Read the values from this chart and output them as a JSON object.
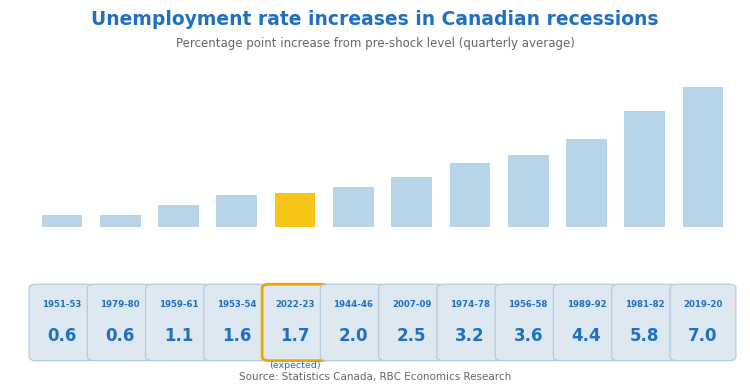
{
  "categories": [
    "1951-53",
    "1979-80",
    "1959-61",
    "1953-54",
    "2022-23",
    "1944-46",
    "2007-09",
    "1974-78",
    "1956-58",
    "1989-92",
    "1981-82",
    "2019-20"
  ],
  "values": [
    0.6,
    0.6,
    1.1,
    1.6,
    1.7,
    2.0,
    2.5,
    3.2,
    3.6,
    4.4,
    5.8,
    7.0
  ],
  "bar_colors": [
    "#b8d4e8",
    "#b8d4e8",
    "#b8d4e8",
    "#b8d4e8",
    "#f5c518",
    "#b8d4e8",
    "#b8d4e8",
    "#b8d4e8",
    "#b8d4e8",
    "#b8d4e8",
    "#b8d4e8",
    "#b8d4e8"
  ],
  "highlight_index": 4,
  "title": "Unemployment rate increases in Canadian recessions",
  "subtitle": "Percentage point increase from pre-shock level (quarterly average)",
  "source": "Source: Statistics Canada, RBC Economics Research",
  "title_color": "#1f70c1",
  "subtitle_color": "#666666",
  "label_color": "#1f70c1",
  "expected_label": "(expected)",
  "background_color": "#ffffff",
  "label_box_color": "#dde8f0",
  "label_box_border": "#b0c8dc",
  "highlight_box_border": "#e8a800",
  "ylim": [
    0,
    8.2
  ]
}
